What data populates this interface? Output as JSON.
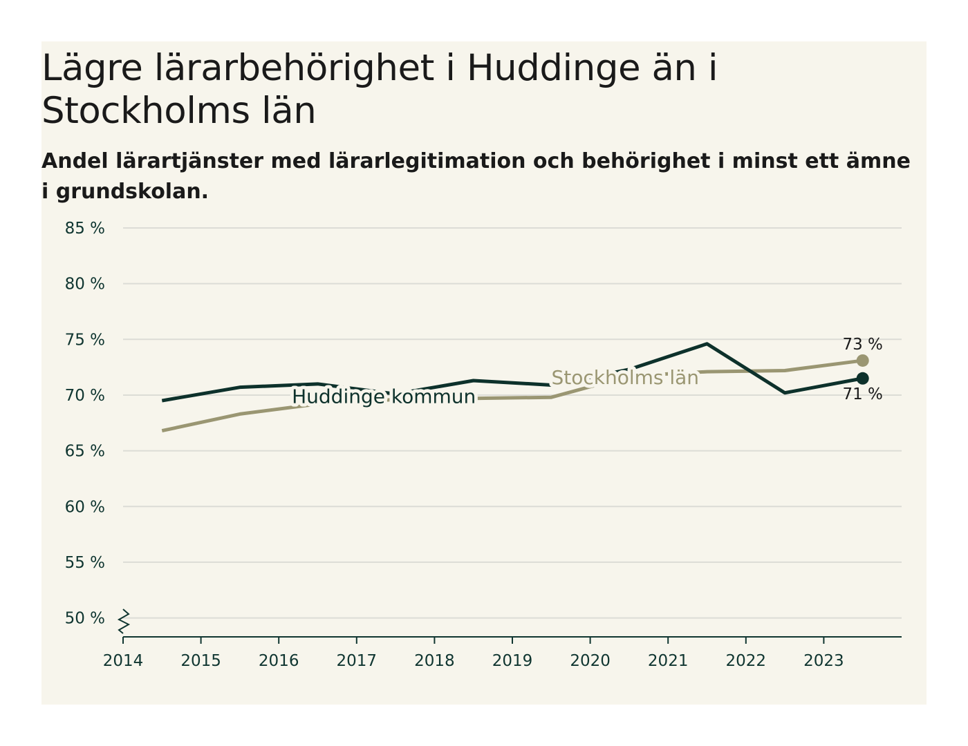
{
  "title": "Lägre lärarbehörighet i Huddinge än i Stockholms län",
  "subtitle": "Andel lärartjänster med lärarlegitimation och behörighet i minst ett ämne i grundskolan.",
  "colors": {
    "background": "#f7f5ec",
    "huddinge": "#0d312b",
    "stockholm": "#9a9672",
    "grid": "#dcdcd6",
    "axis": "#0f3530"
  },
  "chart_data": {
    "type": "line",
    "title": "Lägre lärarbehörighet i Huddinge än i Stockholms län",
    "subtitle": "Andel lärartjänster med lärarlegitimation och behörighet i minst ett ämne i grundskolan.",
    "xlabel": "",
    "ylabel": "",
    "x_ticks": [
      2014,
      2015,
      2016,
      2017,
      2018,
      2019,
      2020,
      2021,
      2022,
      2023
    ],
    "x_range": [
      2014,
      2024
    ],
    "ylim": [
      48.3,
      85
    ],
    "y_ticks": [
      50,
      55,
      60,
      65,
      70,
      75,
      80,
      85
    ],
    "y_tick_labels": [
      "50 %",
      "55 %",
      "60 %",
      "65 %",
      "70 %",
      "75 %",
      "80 %",
      "85 %"
    ],
    "grid": true,
    "axis_break": true,
    "series": [
      {
        "name": "Huddinge kommun",
        "color": "#0d312b",
        "x": [
          2014.5,
          2015.5,
          2016.5,
          2017.5,
          2018.5,
          2019.5,
          2020.5,
          2021.5,
          2022.5,
          2023.5
        ],
        "values": [
          69.5,
          70.7,
          71.0,
          70.1,
          71.3,
          70.9,
          72.3,
          74.6,
          70.2,
          71.5
        ],
        "end_label": "71 %"
      },
      {
        "name": "Stockholms län",
        "color": "#9a9672",
        "x": [
          2014.5,
          2015.5,
          2016.5,
          2017.5,
          2018.5,
          2019.5,
          2020.5,
          2021.5,
          2022.5,
          2023.5
        ],
        "values": [
          66.8,
          68.3,
          69.2,
          69.6,
          69.7,
          69.8,
          71.7,
          72.1,
          72.2,
          73.1
        ],
        "end_label": "73 %"
      }
    ]
  }
}
